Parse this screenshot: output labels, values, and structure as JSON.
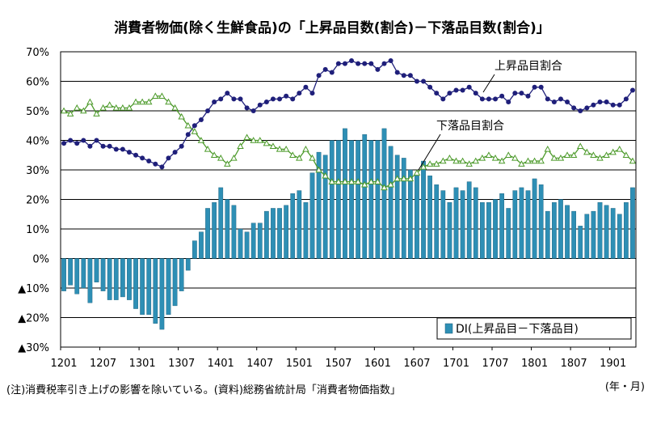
{
  "chart_data": {
    "type": "bar+line",
    "title": "消費者物価(除く生鮮食品)の「上昇品目数(割合)－下落品目数(割合)」",
    "x_unit": "(年・月)",
    "note": "(注)消費税率引き上げの影響を除いている。(資料)総務省統計局「消費者物価指数」",
    "ylim": [
      -30,
      70
    ],
    "y_ticks": [
      {
        "value": 70,
        "label": "70%"
      },
      {
        "value": 60,
        "label": "60%"
      },
      {
        "value": 50,
        "label": "50%"
      },
      {
        "value": 40,
        "label": "40%"
      },
      {
        "value": 30,
        "label": "30%"
      },
      {
        "value": 20,
        "label": "20%"
      },
      {
        "value": 10,
        "label": "10%"
      },
      {
        "value": 0,
        "label": "0%"
      },
      {
        "value": -10,
        "label": "▲10%"
      },
      {
        "value": -20,
        "label": "▲20%"
      },
      {
        "value": -30,
        "label": "▲30%"
      }
    ],
    "x_ticks": [
      {
        "index": 0,
        "label": "1201"
      },
      {
        "index": 6,
        "label": "1207"
      },
      {
        "index": 12,
        "label": "1301"
      },
      {
        "index": 18,
        "label": "1307"
      },
      {
        "index": 24,
        "label": "1401"
      },
      {
        "index": 30,
        "label": "1407"
      },
      {
        "index": 36,
        "label": "1501"
      },
      {
        "index": 42,
        "label": "1507"
      },
      {
        "index": 48,
        "label": "1601"
      },
      {
        "index": 54,
        "label": "1607"
      },
      {
        "index": 60,
        "label": "1701"
      },
      {
        "index": 66,
        "label": "1707"
      },
      {
        "index": 72,
        "label": "1801"
      },
      {
        "index": 78,
        "label": "1807"
      },
      {
        "index": 84,
        "label": "1901"
      }
    ],
    "grid": true,
    "series": [
      {
        "name": "DI(上昇品目－下落品目)",
        "kind": "bar",
        "color": "#2E8FB5",
        "values": [
          -11,
          -9,
          -12,
          -10,
          -15,
          -8,
          -11,
          -14,
          -14,
          -13,
          -14,
          -17,
          -19,
          -19,
          -22,
          -24,
          -19,
          -16,
          -11,
          -4,
          6,
          9,
          17,
          19,
          24,
          20,
          18,
          10,
          9,
          12,
          12,
          16,
          17,
          17,
          18,
          22,
          23,
          19,
          29,
          36,
          35,
          40,
          40,
          44,
          40,
          40,
          42,
          40,
          40,
          44,
          38,
          35,
          34,
          30,
          28,
          33,
          28,
          25,
          23,
          19,
          24,
          23,
          26,
          24,
          19,
          19,
          20,
          22,
          17,
          23,
          24,
          23,
          27,
          25,
          16,
          19,
          20,
          18,
          16,
          11,
          15,
          16,
          19,
          18,
          17,
          15,
          19,
          24
        ]
      },
      {
        "name": "上昇品目割合",
        "kind": "line",
        "marker": "filled-circle",
        "color": "#1F1F7A",
        "values": [
          39,
          40,
          39,
          40,
          38,
          40,
          38,
          38,
          37,
          37,
          36,
          35,
          34,
          33,
          32,
          31,
          34,
          36,
          38,
          42,
          45,
          47,
          50,
          53,
          54,
          56,
          54,
          54,
          51,
          50,
          52,
          53,
          54,
          54,
          55,
          54,
          56,
          58,
          56,
          62,
          64,
          63,
          66,
          66,
          67,
          66,
          66,
          66,
          64,
          66,
          67,
          63,
          62,
          62,
          60,
          60,
          58,
          56,
          54,
          56,
          57,
          57,
          58,
          56,
          54,
          54,
          54,
          55,
          53,
          56,
          56,
          55,
          58,
          58,
          54,
          53,
          54,
          53,
          51,
          50,
          51,
          52,
          53,
          53,
          52,
          52,
          54,
          57
        ]
      },
      {
        "name": "下落品目割合",
        "kind": "line",
        "marker": "hollow-triangle",
        "color": "#4C9A2A",
        "values": [
          50,
          49,
          51,
          50,
          53,
          49,
          51,
          52,
          51,
          51,
          51,
          53,
          53,
          53,
          55,
          55,
          53,
          51,
          48,
          45,
          43,
          40,
          37,
          35,
          34,
          32,
          34,
          38,
          41,
          40,
          40,
          39,
          38,
          37,
          37,
          35,
          34,
          37,
          34,
          30,
          28,
          26,
          26,
          26,
          26,
          26,
          25,
          26,
          26,
          24,
          25,
          27,
          27,
          27,
          29,
          31,
          32,
          32,
          33,
          34,
          33,
          33,
          32,
          33,
          34,
          35,
          34,
          33,
          35,
          34,
          32,
          33,
          33,
          33,
          37,
          34,
          34,
          35,
          35,
          38,
          36,
          35,
          34,
          35,
          36,
          37,
          35,
          33
        ]
      }
    ],
    "legend_placement": "bottom-right"
  }
}
